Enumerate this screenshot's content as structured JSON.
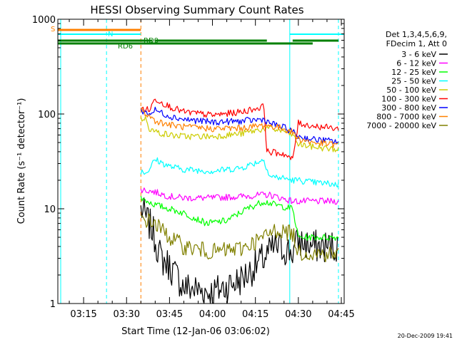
{
  "chart_data": {
    "type": "line",
    "title": "HESSI Observing Summary Count Rates",
    "xlabel": "Start Time (12-Jan-06 03:06:02)",
    "ylabel": "Count Rate (s⁻¹ detector⁻¹)",
    "y_scale": "log",
    "ylim": [
      1,
      1000
    ],
    "y_ticks": [
      {
        "value": 1,
        "label": "1"
      },
      {
        "value": 10,
        "label": "10"
      },
      {
        "value": 100,
        "label": "100"
      },
      {
        "value": 1000,
        "label": "1000"
      }
    ],
    "xlim": [
      "03:06",
      "04:46"
    ],
    "x_ticks": [
      "03:15",
      "03:30",
      "03:45",
      "04:00",
      "04:15",
      "04:30",
      "04:45"
    ],
    "grid": false,
    "legend_position": "right",
    "legend_header": [
      "Det 1,3,4,5,6,9,",
      "FDecim 1, Att 0"
    ],
    "timestamp": "20-Dec-2009 19:41",
    "annotations": [
      {
        "label": "S",
        "color": "#ff8000"
      },
      {
        "label": "N",
        "color": "#00ffff"
      },
      {
        "label": "RD6",
        "color": "#008000"
      },
      {
        "label": "RD0",
        "color": "#008000"
      }
    ],
    "state_bars": [
      {
        "label": "S",
        "color": "#ff8000",
        "segments": [
          [
            "03:06",
            "03:35"
          ]
        ]
      },
      {
        "label": "N",
        "color": "#00ffff",
        "segments": [
          [
            "03:06",
            "03:35"
          ],
          [
            "04:27",
            "04:46"
          ]
        ]
      },
      {
        "label": "RD6",
        "color": "#008000",
        "segments": [
          [
            "03:06",
            "04:35"
          ]
        ]
      },
      {
        "label": "RD0",
        "color": "#008000",
        "segments": [
          [
            "03:06",
            "03:39"
          ],
          [
            "03:40",
            "04:19"
          ],
          [
            "04:28",
            "04:44"
          ]
        ]
      }
    ],
    "vlines": [
      {
        "time": "03:07",
        "color": "#00ffff",
        "style": "solid"
      },
      {
        "time": "03:23",
        "color": "#00ffff",
        "style": "dashed"
      },
      {
        "time": "03:35",
        "color": "#ff8000",
        "style": "dashed"
      },
      {
        "time": "04:27",
        "color": "#00ffff",
        "style": "solid"
      },
      {
        "time": "04:44",
        "color": "#00ffff",
        "style": "dashed"
      }
    ],
    "series": [
      {
        "name": "3 - 6 keV",
        "color": "#000000",
        "points": [
          [
            "03:35",
            10
          ],
          [
            "03:39",
            6
          ],
          [
            "03:42",
            3
          ],
          [
            "03:45",
            2.5
          ],
          [
            "03:50",
            1.5
          ],
          [
            "04:00",
            1.3
          ],
          [
            "04:10",
            1.8
          ],
          [
            "04:18",
            3
          ],
          [
            "04:22",
            4
          ],
          [
            "04:28",
            3.5
          ],
          [
            "04:30",
            4.5
          ],
          [
            "04:35",
            4
          ],
          [
            "04:44",
            4
          ]
        ]
      },
      {
        "name": "6 - 12 keV",
        "color": "#ff00ff",
        "points": [
          [
            "03:35",
            16
          ],
          [
            "03:40",
            15
          ],
          [
            "03:45",
            13.5
          ],
          [
            "03:50",
            13
          ],
          [
            "04:00",
            13
          ],
          [
            "04:10",
            13.5
          ],
          [
            "04:18",
            14
          ],
          [
            "04:20",
            14
          ],
          [
            "04:28",
            12
          ],
          [
            "04:30",
            12
          ],
          [
            "04:35",
            12
          ],
          [
            "04:44",
            12
          ]
        ]
      },
      {
        "name": "12 - 25 keV",
        "color": "#00ff00",
        "points": [
          [
            "03:35",
            13
          ],
          [
            "03:40",
            11
          ],
          [
            "03:45",
            10
          ],
          [
            "03:50",
            9
          ],
          [
            "03:58",
            7
          ],
          [
            "04:05",
            7.5
          ],
          [
            "04:12",
            10
          ],
          [
            "04:18",
            12
          ],
          [
            "04:22",
            11
          ],
          [
            "04:28",
            10
          ],
          [
            "04:30",
            5
          ],
          [
            "04:35",
            5
          ],
          [
            "04:44",
            5
          ]
        ]
      },
      {
        "name": "25 - 50 keV",
        "color": "#00ffff",
        "points": [
          [
            "03:35",
            25
          ],
          [
            "03:37",
            24
          ],
          [
            "03:40",
            33
          ],
          [
            "03:45",
            28
          ],
          [
            "03:50",
            26
          ],
          [
            "04:00",
            25
          ],
          [
            "04:10",
            27
          ],
          [
            "04:18",
            33
          ],
          [
            "04:20",
            22
          ],
          [
            "04:25",
            21
          ],
          [
            "04:28",
            20
          ],
          [
            "04:30",
            20
          ],
          [
            "04:35",
            19
          ],
          [
            "04:44",
            18
          ]
        ]
      },
      {
        "name": "50 - 100 keV",
        "color": "#cccc00",
        "points": [
          [
            "03:35",
            90
          ],
          [
            "03:37",
            88
          ],
          [
            "03:38",
            70
          ],
          [
            "03:40",
            65
          ],
          [
            "03:45",
            60
          ],
          [
            "03:50",
            58
          ],
          [
            "04:00",
            58
          ],
          [
            "04:10",
            62
          ],
          [
            "04:18",
            70
          ],
          [
            "04:20",
            70
          ],
          [
            "04:25",
            66
          ],
          [
            "04:28",
            60
          ],
          [
            "04:30",
            48
          ],
          [
            "04:35",
            45
          ],
          [
            "04:44",
            42
          ]
        ]
      },
      {
        "name": "100 - 300 keV",
        "color": "#ff0000",
        "points": [
          [
            "03:35",
            115
          ],
          [
            "03:38",
            110
          ],
          [
            "03:40",
            145
          ],
          [
            "03:45",
            120
          ],
          [
            "03:50",
            105
          ],
          [
            "04:00",
            97
          ],
          [
            "04:10",
            105
          ],
          [
            "04:18",
            120
          ],
          [
            "04:19",
            40
          ],
          [
            "04:25",
            38
          ],
          [
            "04:27",
            34
          ],
          [
            "04:28",
            33
          ],
          [
            "04:30",
            80
          ],
          [
            "04:35",
            75
          ],
          [
            "04:44",
            70
          ]
        ]
      },
      {
        "name": "300 - 800 keV",
        "color": "#0000ff",
        "points": [
          [
            "03:35",
            110
          ],
          [
            "03:38",
            100
          ],
          [
            "03:40",
            110
          ],
          [
            "03:45",
            95
          ],
          [
            "03:50",
            88
          ],
          [
            "04:00",
            82
          ],
          [
            "04:10",
            84
          ],
          [
            "04:18",
            88
          ],
          [
            "04:20",
            80
          ],
          [
            "04:25",
            72
          ],
          [
            "04:28",
            65
          ],
          [
            "04:30",
            58
          ],
          [
            "04:35",
            54
          ],
          [
            "04:44",
            51
          ]
        ]
      },
      {
        "name": "800 - 7000 keV",
        "color": "#ff8000",
        "points": [
          [
            "03:35",
            110
          ],
          [
            "03:38",
            95
          ],
          [
            "03:40",
            85
          ],
          [
            "03:45",
            77
          ],
          [
            "03:50",
            73
          ],
          [
            "04:00",
            70
          ],
          [
            "04:10",
            71
          ],
          [
            "04:18",
            76
          ],
          [
            "04:20",
            75
          ],
          [
            "04:25",
            70
          ],
          [
            "04:28",
            64
          ],
          [
            "04:30",
            55
          ],
          [
            "04:35",
            50
          ],
          [
            "04:44",
            47
          ]
        ]
      },
      {
        "name": "7000 - 20000 keV",
        "color": "#808000",
        "points": [
          [
            "03:35",
            8
          ],
          [
            "03:40",
            7
          ],
          [
            "03:45",
            5
          ],
          [
            "03:50",
            4
          ],
          [
            "04:00",
            3.5
          ],
          [
            "04:10",
            3.8
          ],
          [
            "04:18",
            5
          ],
          [
            "04:22",
            6
          ],
          [
            "04:28",
            5.5
          ],
          [
            "04:30",
            3.5
          ],
          [
            "04:35",
            3.4
          ],
          [
            "04:44",
            3.3
          ]
        ]
      }
    ]
  }
}
